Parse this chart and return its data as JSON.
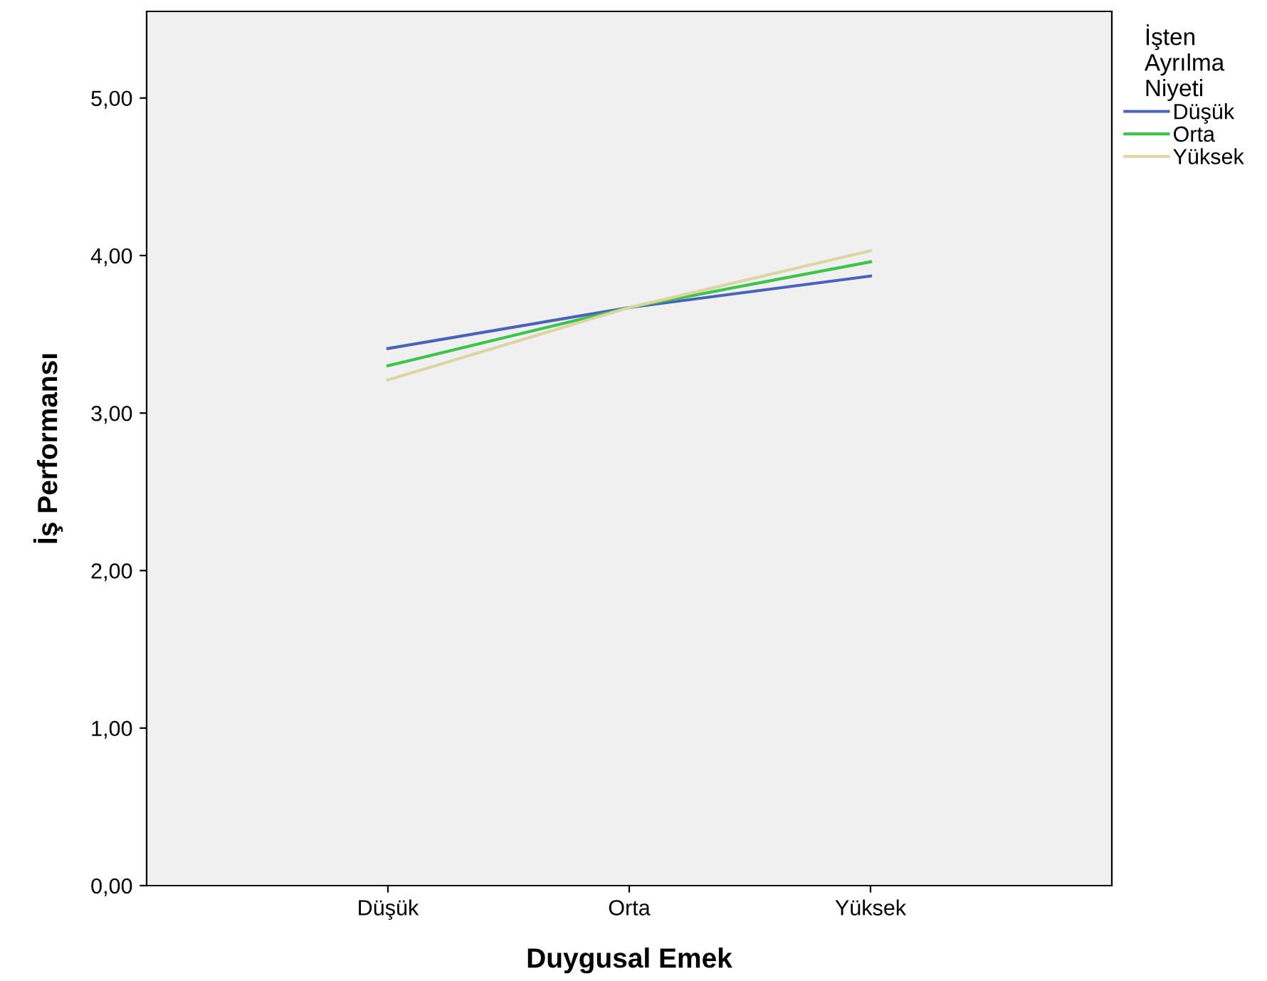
{
  "chart_data": {
    "type": "line",
    "xlabel": "Duygusal Emek",
    "ylabel": "İş Performansı",
    "legend_title": "İşten\nAyrılma\nNiyeti",
    "categories": [
      "Düşük",
      "Orta",
      "Yüksek"
    ],
    "series": [
      {
        "name": "Düşük",
        "color": "#4a62b8",
        "values": [
          3.41,
          3.67,
          3.87
        ]
      },
      {
        "name": "Orta",
        "color": "#3cc44c",
        "values": [
          3.3,
          3.67,
          3.96
        ]
      },
      {
        "name": "Yüksek",
        "color": "#ddd4a4",
        "values": [
          3.21,
          3.67,
          4.03
        ]
      }
    ],
    "ylim": [
      0,
      5.55
    ],
    "yticks": [
      {
        "value": 0,
        "label": "0,00"
      },
      {
        "value": 1,
        "label": "1,00"
      },
      {
        "value": 2,
        "label": "2,00"
      },
      {
        "value": 3,
        "label": "3,00"
      },
      {
        "value": 4,
        "label": "4,00"
      },
      {
        "value": 5,
        "label": "5,00"
      }
    ],
    "grid": false,
    "legend": "top right",
    "marker": "none",
    "line_style": "solid"
  }
}
